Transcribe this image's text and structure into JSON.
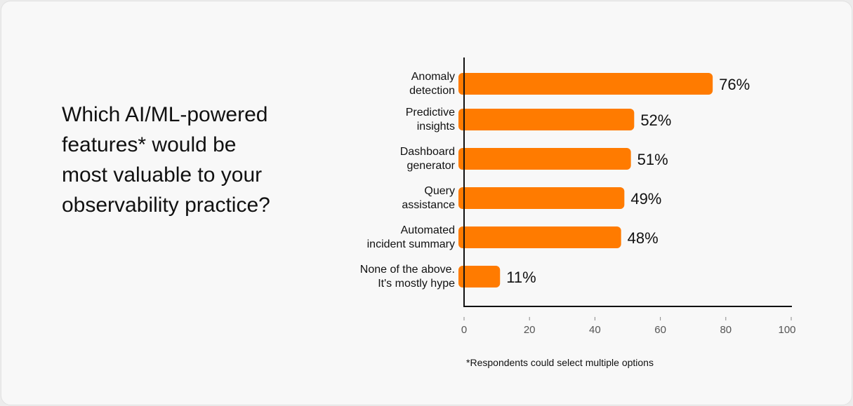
{
  "question": "Which AI/ML-powered features* would be most valuable to your observability practice?",
  "footnote": "*Respondents could select multiple options",
  "chart_data": {
    "type": "bar",
    "orientation": "horizontal",
    "categories": [
      [
        "Anomaly",
        "detection"
      ],
      [
        "Predictive",
        "insights"
      ],
      [
        "Dashboard",
        "generator"
      ],
      [
        "Query",
        "assistance"
      ],
      [
        "Automated",
        "incident summary"
      ],
      [
        "None of the above.",
        "It's mostly hype"
      ]
    ],
    "values": [
      76,
      52,
      51,
      49,
      48,
      11
    ],
    "data_labels": [
      "76%",
      "52%",
      "51%",
      "49%",
      "48%",
      "11%"
    ],
    "xlim": [
      0,
      100
    ],
    "xticks": [
      0,
      20,
      40,
      60,
      80,
      100
    ],
    "grid": false,
    "bar_color": "#ff7b00"
  }
}
